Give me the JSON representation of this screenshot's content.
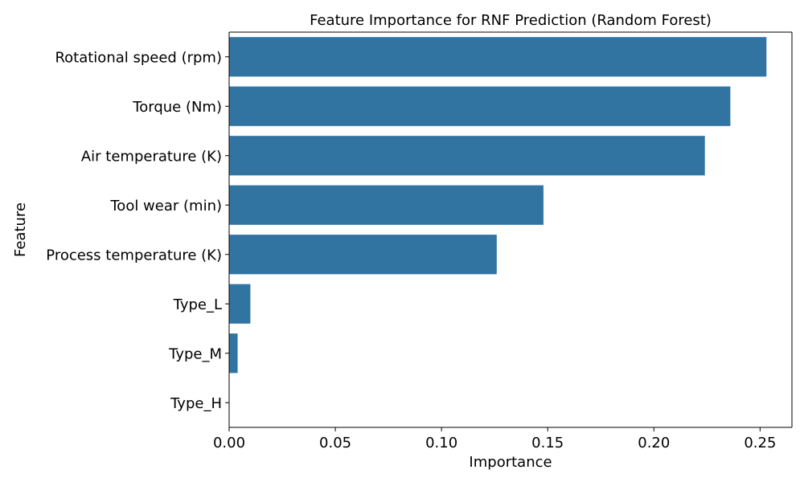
{
  "chart_data": {
    "type": "bar",
    "orientation": "horizontal",
    "title": "Feature Importance for RNF Prediction (Random Forest)",
    "xlabel": "Importance",
    "ylabel": "Feature",
    "categories": [
      "Rotational speed (rpm)",
      "Torque (Nm)",
      "Air temperature (K)",
      "Tool wear (min)",
      "Process temperature (K)",
      "Type_L",
      "Type_M",
      "Type_H"
    ],
    "values": [
      0.253,
      0.236,
      0.224,
      0.148,
      0.126,
      0.01,
      0.004,
      0.0
    ],
    "xlim": [
      0.0,
      0.265
    ],
    "xticks": [
      0.0,
      0.05,
      0.1,
      0.15,
      0.2,
      0.25
    ],
    "xtick_labels": [
      "0.00",
      "0.05",
      "0.10",
      "0.15",
      "0.20",
      "0.25"
    ],
    "bar_color": "#3274a1",
    "grid": false,
    "legend": "none"
  }
}
